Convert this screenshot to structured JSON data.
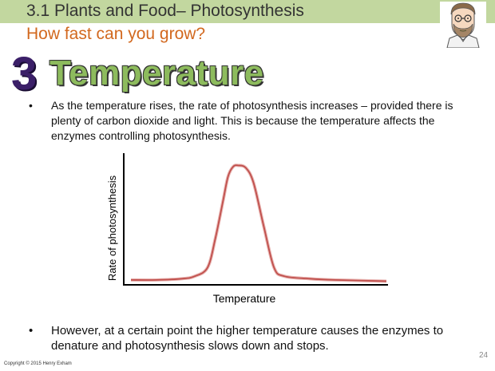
{
  "header": {
    "title": "3.1 Plants and Food– Photosynthesis",
    "subtitle": "How fast can you grow?"
  },
  "section": {
    "number": "3",
    "heading": "Temperature"
  },
  "bullets": [
    "As the temperature rises, the rate of photosynthesis increases – provided there is plenty of carbon dioxide and light. This is because the temperature affects the enzymes controlling photosynthesis.",
    "However, at a certain point the higher temperature causes the enzymes to denature and photosynthesis slows down and stops."
  ],
  "bullet_marker": "•",
  "chart_data": {
    "type": "line",
    "xlabel": "Temperature",
    "ylabel": "Rate of photosynthesis",
    "series_color": "#c0504d",
    "x": [
      0,
      10,
      20,
      25,
      30,
      33,
      36,
      38,
      40,
      42,
      45,
      48,
      52,
      56,
      60,
      70,
      80,
      100
    ],
    "y": [
      2,
      2,
      3,
      5,
      12,
      35,
      65,
      85,
      93,
      94,
      92,
      80,
      45,
      12,
      5,
      3,
      2,
      1
    ],
    "xlim": [
      0,
      100
    ],
    "ylim": [
      0,
      100
    ]
  },
  "footer": {
    "copyright": "Copyright © 2015 Henry Exham",
    "page_number": "24"
  }
}
